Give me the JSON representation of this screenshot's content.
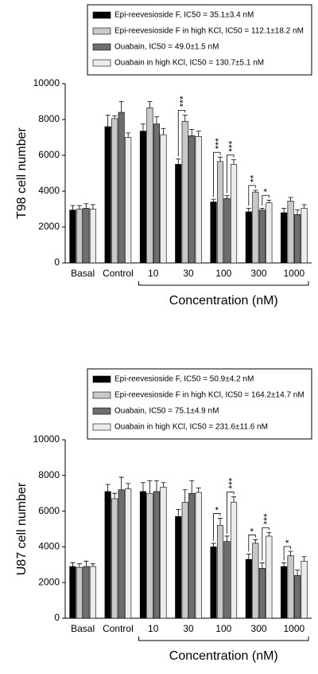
{
  "chart_data": [
    {
      "type": "bar",
      "ylabel": "T98 cell number",
      "xlabel": "Concentration (nM)",
      "categories": [
        "Basal",
        "Control",
        "10",
        "30",
        "100",
        "300",
        "1000"
      ],
      "ylim": [
        0,
        10000
      ],
      "yticks": [
        0,
        2000,
        4000,
        6000,
        8000,
        10000
      ],
      "series": [
        {
          "name": "Epi-reevesioside F, IC50 = 35.1±3.4 nM",
          "color": "#000000",
          "values": [
            2950,
            7600,
            7350,
            5500,
            3400,
            2850,
            2800
          ],
          "errors": [
            250,
            650,
            400,
            300,
            150,
            200,
            250
          ]
        },
        {
          "name": "Epi-reevesioside F in high KCl, IC50 = 112.1±18.2 nM",
          "color": "#c8c8c8",
          "values": [
            3000,
            8050,
            8650,
            7900,
            5650,
            3950,
            3450
          ],
          "errors": [
            200,
            150,
            350,
            350,
            250,
            100,
            200
          ]
        },
        {
          "name": "Ouabain, IC50 = 49.0±1.5 nM",
          "color": "#6e6e6e",
          "values": [
            3050,
            8400,
            7750,
            7100,
            3600,
            2950,
            2700
          ],
          "errors": [
            250,
            600,
            400,
            350,
            150,
            100,
            250
          ]
        },
        {
          "name": "Ouabain in high KCl, IC50 = 130.7±5.1 nM",
          "color": "#ececec",
          "values": [
            3000,
            7000,
            7150,
            7050,
            5500,
            3350,
            3050
          ],
          "errors": [
            250,
            250,
            350,
            300,
            250,
            150,
            200
          ]
        }
      ],
      "annotations": [
        {
          "text": "***",
          "category": 3,
          "series": [
            0,
            1
          ]
        },
        {
          "text": "***",
          "category": 4,
          "series": [
            0,
            1
          ]
        },
        {
          "text": "***",
          "category": 4,
          "series": [
            2,
            3
          ]
        },
        {
          "text": "**",
          "category": 5,
          "series": [
            0,
            1
          ]
        },
        {
          "text": "*",
          "category": 5,
          "series": [
            2,
            3
          ]
        }
      ]
    },
    {
      "type": "bar",
      "ylabel": "U87 cell number",
      "xlabel": "Concentration (nM)",
      "categories": [
        "Basal",
        "Control",
        "10",
        "30",
        "100",
        "300",
        "1000"
      ],
      "ylim": [
        0,
        10000
      ],
      "yticks": [
        0,
        2000,
        4000,
        6000,
        8000,
        10000
      ],
      "series": [
        {
          "name": "Epi-reevesioside F, IC50 = 50.9±4.2 nM",
          "color": "#000000",
          "values": [
            2900,
            7100,
            7100,
            5700,
            4000,
            3300,
            2900
          ],
          "errors": [
            200,
            400,
            500,
            400,
            200,
            300,
            200
          ]
        },
        {
          "name": "Epi-reevesioside F in high KCl, IC50 = 164.2±14.7 nM",
          "color": "#c8c8c8",
          "values": [
            2850,
            6700,
            7000,
            6500,
            5200,
            4200,
            3500
          ],
          "errors": [
            200,
            300,
            700,
            700,
            400,
            200,
            250
          ]
        },
        {
          "name": "Ouabain, IC50 = 75.1±4.9 nM",
          "color": "#6e6e6e",
          "values": [
            2900,
            7200,
            7100,
            7000,
            4300,
            2800,
            2400
          ],
          "errors": [
            300,
            700,
            600,
            700,
            300,
            300,
            300
          ]
        },
        {
          "name": "Ouabain in high KCl, IC50 = 231.6±11.6 nM",
          "color": "#ececec",
          "values": [
            2900,
            7250,
            7350,
            7050,
            6500,
            4600,
            3200
          ],
          "errors": [
            150,
            300,
            250,
            250,
            300,
            200,
            250
          ]
        }
      ],
      "annotations": [
        {
          "text": "*",
          "category": 4,
          "series": [
            0,
            1
          ]
        },
        {
          "text": "***",
          "category": 4,
          "series": [
            2,
            3
          ]
        },
        {
          "text": "*",
          "category": 5,
          "series": [
            0,
            1
          ]
        },
        {
          "text": "***",
          "category": 5,
          "series": [
            2,
            3
          ]
        },
        {
          "text": "*",
          "category": 6,
          "series": [
            0,
            1
          ]
        }
      ]
    }
  ]
}
